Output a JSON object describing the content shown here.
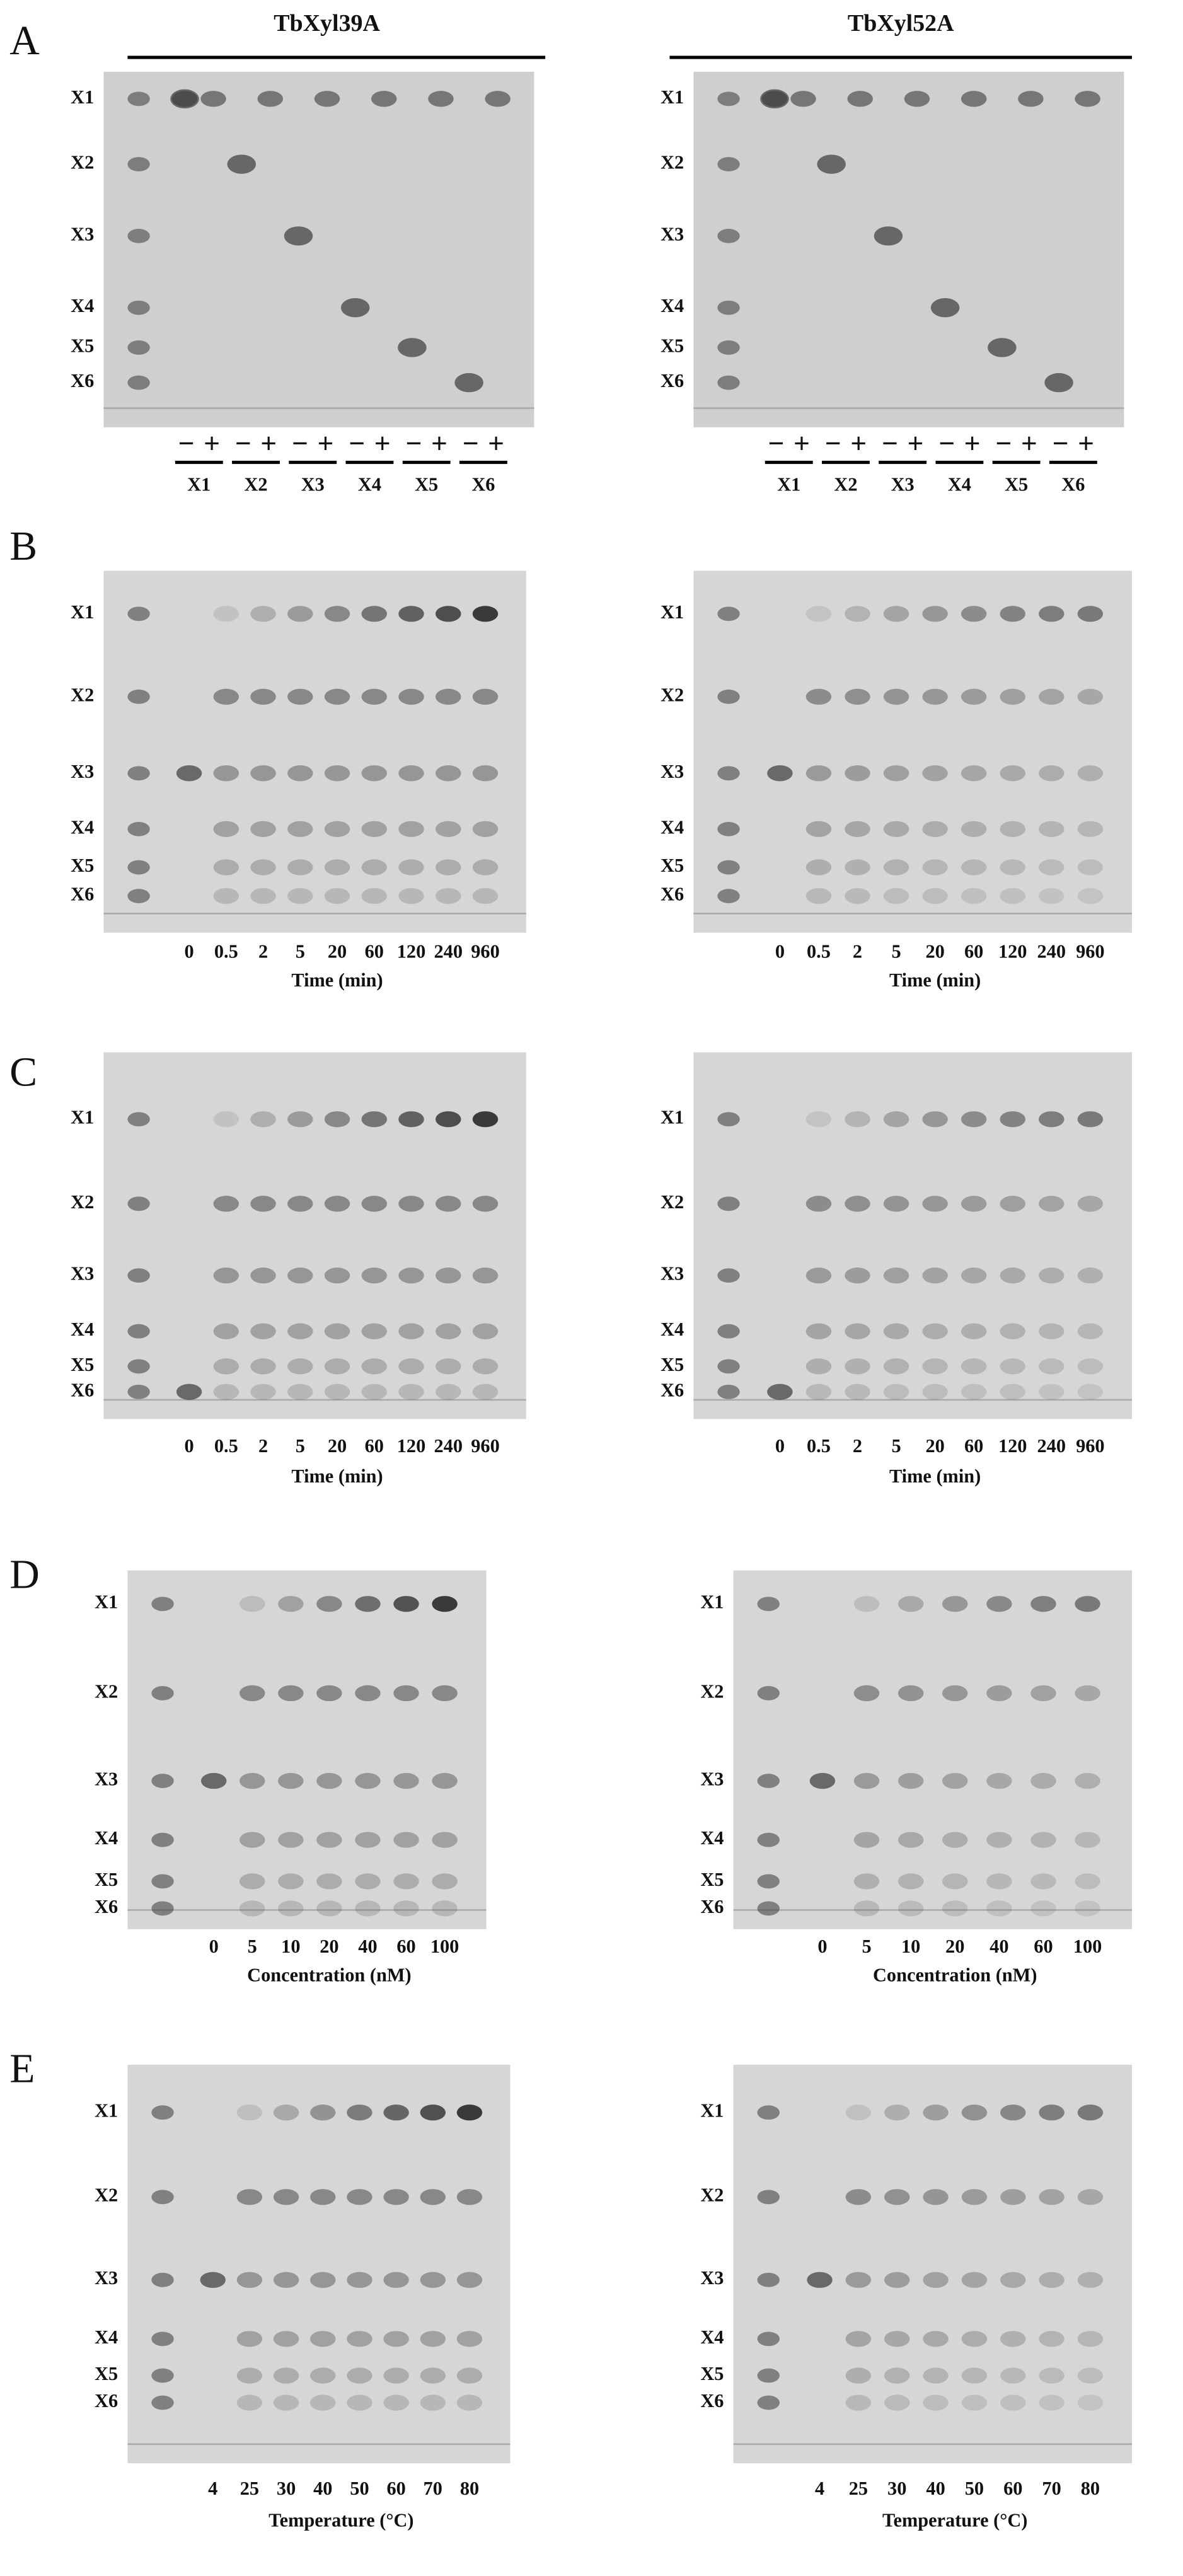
{
  "figure": {
    "headers": [
      "TbXyl39A",
      "TbXyl52A"
    ],
    "panels": [
      {
        "letter": "A",
        "plates": [
          {
            "standards": [
              "X1",
              "X2",
              "X3",
              "X4",
              "X5",
              "X6"
            ],
            "lanes": [
              "−",
              "+",
              "−",
              "+",
              "−",
              "+",
              "−",
              "+",
              "−",
              "+",
              "−",
              "+"
            ],
            "groups": [
              "X1",
              "X2",
              "X3",
              "X4",
              "X5",
              "X6"
            ]
          },
          {
            "standards": [
              "X1",
              "X2",
              "X3",
              "X4",
              "X5",
              "X6"
            ],
            "lanes": [
              "−",
              "+",
              "−",
              "+",
              "−",
              "+",
              "−",
              "+",
              "−",
              "+",
              "−",
              "+"
            ],
            "groups": [
              "X1",
              "X2",
              "X3",
              "X4",
              "X5",
              "X6"
            ]
          }
        ]
      },
      {
        "letter": "B",
        "plates": [
          {
            "standards": [
              "X1",
              "X2",
              "X3",
              "X4",
              "X5",
              "X6"
            ],
            "lanes": [
              "0",
              "0.5",
              "2",
              "5",
              "20",
              "60",
              "120",
              "240",
              "960"
            ],
            "axis_label": "Time (min)"
          },
          {
            "standards": [
              "X1",
              "X2",
              "X3",
              "X4",
              "X5",
              "X6"
            ],
            "lanes": [
              "0",
              "0.5",
              "2",
              "5",
              "20",
              "60",
              "120",
              "240",
              "960"
            ],
            "axis_label": "Time (min)"
          }
        ]
      },
      {
        "letter": "C",
        "plates": [
          {
            "standards": [
              "X1",
              "X2",
              "X3",
              "X4",
              "X5",
              "X6"
            ],
            "lanes": [
              "0",
              "0.5",
              "2",
              "5",
              "20",
              "60",
              "120",
              "240",
              "960"
            ],
            "axis_label": "Time (min)"
          },
          {
            "standards": [
              "X1",
              "X2",
              "X3",
              "X4",
              "X5",
              "X6"
            ],
            "lanes": [
              "0",
              "0.5",
              "2",
              "5",
              "20",
              "60",
              "120",
              "240",
              "960"
            ],
            "axis_label": "Time (min)"
          }
        ]
      },
      {
        "letter": "D",
        "plates": [
          {
            "standards": [
              "X1",
              "X2",
              "X3",
              "X4",
              "X5",
              "X6"
            ],
            "lanes": [
              "0",
              "5",
              "10",
              "20",
              "40",
              "60",
              "100"
            ],
            "axis_label": "Concentration (nM)"
          },
          {
            "standards": [
              "X1",
              "X2",
              "X3",
              "X4",
              "X5",
              "X6"
            ],
            "lanes": [
              "0",
              "5",
              "10",
              "20",
              "40",
              "60",
              "100"
            ],
            "axis_label": "Concentration (nM)"
          }
        ]
      },
      {
        "letter": "E",
        "plates": [
          {
            "standards": [
              "X1",
              "X2",
              "X3",
              "X4",
              "X5",
              "X6"
            ],
            "lanes": [
              "4",
              "25",
              "30",
              "40",
              "50",
              "60",
              "70",
              "80"
            ],
            "axis_label": "Temperature (°C)"
          },
          {
            "standards": [
              "X1",
              "X2",
              "X3",
              "X4",
              "X5",
              "X6"
            ],
            "lanes": [
              "4",
              "25",
              "30",
              "40",
              "50",
              "60",
              "70",
              "80"
            ],
            "axis_label": "Temperature (°C)"
          }
        ]
      }
    ]
  }
}
